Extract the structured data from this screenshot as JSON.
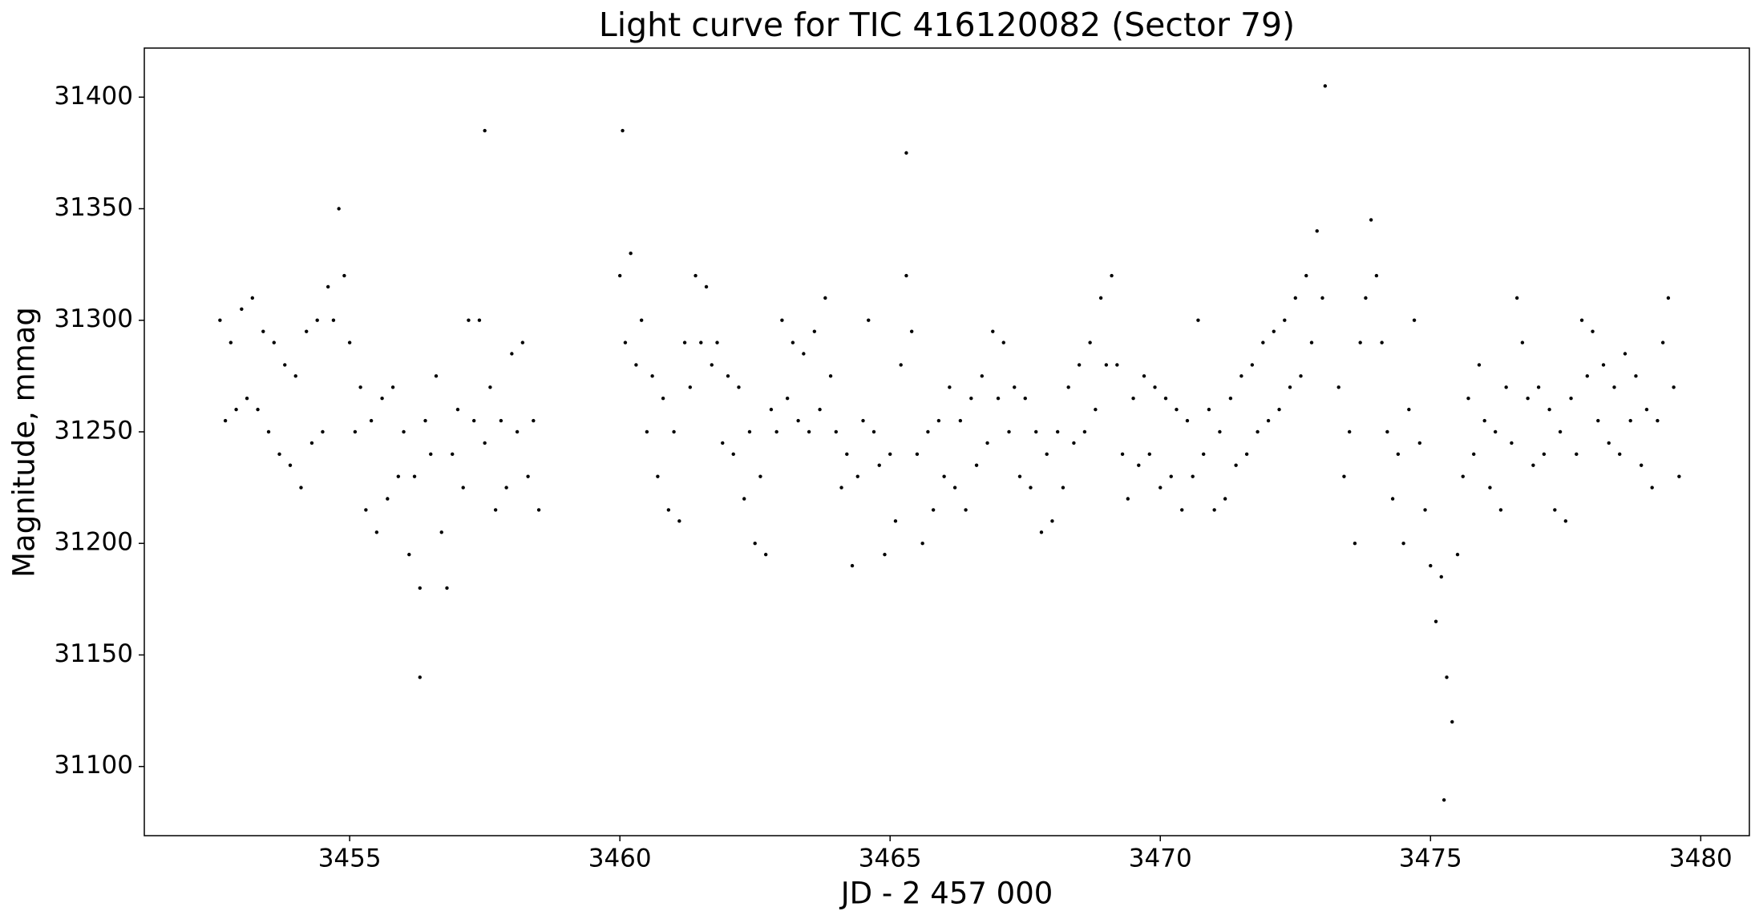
{
  "chart_data": {
    "type": "scatter",
    "title": "Light curve for TIC 416120082 (Sector 79)",
    "xlabel": "JD - 2 457 000",
    "ylabel": "Magnitude, mmag",
    "color": "#000000",
    "xlim": [
      3451.2,
      3480.9
    ],
    "ylim": [
      31069,
      31422
    ],
    "xticks": [
      3455,
      3460,
      3465,
      3470,
      3475,
      3480
    ],
    "yticks": [
      31100,
      31150,
      31200,
      31250,
      31300,
      31350,
      31400
    ],
    "x": [
      3452.6,
      3452.7,
      3452.8,
      3452.9,
      3453.0,
      3453.1,
      3453.2,
      3453.3,
      3453.4,
      3453.5,
      3453.6,
      3453.7,
      3453.8,
      3453.9,
      3454.0,
      3454.1,
      3454.2,
      3454.3,
      3454.4,
      3454.5,
      3454.6,
      3454.7,
      3454.8,
      3454.9,
      3455.0,
      3455.1,
      3455.2,
      3455.3,
      3455.4,
      3455.5,
      3455.6,
      3455.7,
      3455.8,
      3455.9,
      3456.0,
      3456.1,
      3456.2,
      3456.3,
      3456.4,
      3456.5,
      3456.6,
      3456.7,
      3456.8,
      3456.9,
      3457.0,
      3457.1,
      3457.2,
      3457.3,
      3457.4,
      3457.5,
      3457.6,
      3457.7,
      3457.8,
      3457.9,
      3458.0,
      3458.1,
      3458.2,
      3458.3,
      3458.4,
      3458.5,
      3460.0,
      3460.1,
      3460.2,
      3460.3,
      3460.4,
      3460.5,
      3460.6,
      3460.7,
      3460.8,
      3460.9,
      3461.0,
      3461.1,
      3461.2,
      3461.3,
      3461.4,
      3461.5,
      3461.6,
      3461.7,
      3461.8,
      3461.9,
      3462.0,
      3462.1,
      3462.2,
      3462.3,
      3462.4,
      3462.5,
      3462.6,
      3462.7,
      3462.8,
      3462.9,
      3463.0,
      3463.1,
      3463.2,
      3463.3,
      3463.4,
      3463.5,
      3463.6,
      3463.7,
      3463.8,
      3463.9,
      3464.0,
      3464.1,
      3464.2,
      3464.3,
      3464.4,
      3464.5,
      3464.6,
      3464.7,
      3464.8,
      3464.9,
      3465.0,
      3465.1,
      3465.2,
      3465.3,
      3465.4,
      3465.5,
      3465.6,
      3465.7,
      3465.8,
      3465.9,
      3466.0,
      3466.1,
      3466.2,
      3466.3,
      3466.4,
      3466.5,
      3466.6,
      3466.7,
      3466.8,
      3466.9,
      3467.0,
      3467.1,
      3467.2,
      3467.3,
      3467.4,
      3467.5,
      3467.6,
      3467.7,
      3467.8,
      3467.9,
      3468.0,
      3468.1,
      3468.2,
      3468.3,
      3468.4,
      3468.5,
      3468.6,
      3468.7,
      3468.8,
      3468.9,
      3469.0,
      3469.1,
      3469.2,
      3469.3,
      3469.4,
      3469.5,
      3469.6,
      3469.7,
      3469.8,
      3469.9,
      3470.0,
      3470.1,
      3470.2,
      3470.3,
      3470.4,
      3470.5,
      3470.6,
      3470.7,
      3470.8,
      3470.9,
      3471.0,
      3471.1,
      3471.2,
      3471.3,
      3471.4,
      3471.5,
      3471.6,
      3471.7,
      3471.8,
      3471.9,
      3472.0,
      3472.1,
      3472.2,
      3472.3,
      3472.4,
      3472.5,
      3472.6,
      3472.7,
      3472.8,
      3472.9,
      3473.0,
      3473.3,
      3473.4,
      3473.5,
      3473.6,
      3473.7,
      3473.8,
      3473.9,
      3474.0,
      3474.1,
      3474.2,
      3474.3,
      3474.4,
      3474.5,
      3474.6,
      3474.7,
      3474.8,
      3474.9,
      3475.0,
      3475.1,
      3475.2,
      3475.3,
      3475.4,
      3475.5,
      3475.6,
      3475.7,
      3475.8,
      3475.9,
      3476.0,
      3476.1,
      3476.2,
      3476.3,
      3476.4,
      3476.5,
      3476.6,
      3476.7,
      3476.8,
      3476.9,
      3477.0,
      3477.1,
      3477.2,
      3477.3,
      3477.4,
      3477.5,
      3477.6,
      3477.7,
      3477.8,
      3477.9,
      3478.0,
      3478.1,
      3478.2,
      3478.3,
      3478.4,
      3478.5,
      3478.6,
      3478.7,
      3478.8,
      3478.9,
      3479.0,
      3479.1,
      3479.2,
      3479.3,
      3479.4,
      3479.5,
      3479.6,
      3475.25,
      3473.05,
      3465.3,
      3460.05,
      3457.5,
      3456.3
    ],
    "values": [
      31300,
      31255,
      31290,
      31260,
      31305,
      31265,
      31310,
      31260,
      31295,
      31250,
      31290,
      31240,
      31280,
      31235,
      31275,
      31225,
      31295,
      31245,
      31300,
      31250,
      31315,
      31300,
      31350,
      31320,
      31290,
      31250,
      31270,
      31215,
      31255,
      31205,
      31265,
      31220,
      31270,
      31230,
      31250,
      31195,
      31230,
      31180,
      31255,
      31240,
      31275,
      31205,
      31180,
      31240,
      31260,
      31225,
      31300,
      31255,
      31300,
      31245,
      31270,
      31215,
      31255,
      31225,
      31285,
      31250,
      31290,
      31230,
      31255,
      31215,
      31320,
      31290,
      31330,
      31280,
      31300,
      31250,
      31275,
      31230,
      31265,
      31215,
      31250,
      31210,
      31290,
      31270,
      31320,
      31290,
      31315,
      31280,
      31290,
      31245,
      31275,
      31240,
      31270,
      31220,
      31250,
      31200,
      31230,
      31195,
      31260,
      31250,
      31300,
      31265,
      31290,
      31255,
      31285,
      31250,
      31295,
      31260,
      31310,
      31275,
      31250,
      31225,
      31240,
      31190,
      31230,
      31255,
      31300,
      31250,
      31235,
      31195,
      31240,
      31210,
      31280,
      31320,
      31295,
      31240,
      31200,
      31250,
      31215,
      31255,
      31230,
      31270,
      31225,
      31255,
      31215,
      31265,
      31235,
      31275,
      31245,
      31295,
      31265,
      31290,
      31250,
      31270,
      31230,
      31265,
      31225,
      31250,
      31205,
      31240,
      31210,
      31250,
      31225,
      31270,
      31245,
      31280,
      31250,
      31290,
      31260,
      31310,
      31280,
      31320,
      31280,
      31240,
      31220,
      31265,
      31235,
      31275,
      31240,
      31270,
      31225,
      31265,
      31230,
      31260,
      31215,
      31255,
      31230,
      31300,
      31240,
      31260,
      31215,
      31250,
      31220,
      31265,
      31235,
      31275,
      31240,
      31280,
      31250,
      31290,
      31255,
      31295,
      31260,
      31300,
      31270,
      31310,
      31275,
      31320,
      31290,
      31340,
      31310,
      31270,
      31230,
      31250,
      31200,
      31290,
      31310,
      31345,
      31320,
      31290,
      31250,
      31220,
      31240,
      31200,
      31260,
      31300,
      31245,
      31215,
      31190,
      31165,
      31185,
      31140,
      31120,
      31195,
      31230,
      31265,
      31240,
      31280,
      31255,
      31225,
      31250,
      31215,
      31270,
      31245,
      31310,
      31290,
      31265,
      31235,
      31270,
      31240,
      31260,
      31215,
      31250,
      31210,
      31265,
      31240,
      31300,
      31275,
      31295,
      31255,
      31280,
      31245,
      31270,
      31240,
      31285,
      31255,
      31275,
      31235,
      31260,
      31225,
      31255,
      31290,
      31310,
      31270,
      31230,
      31085,
      31405,
      31375,
      31385,
      31385,
      31140
    ]
  }
}
